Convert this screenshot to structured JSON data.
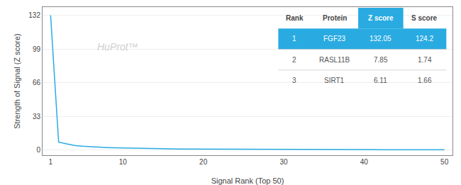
{
  "chart_data": {
    "type": "line",
    "xlabel": "Signal Rank (Top 50)",
    "ylabel": "Strength of Signal (Z score)",
    "x": [
      1,
      2,
      3,
      4,
      5,
      6,
      7,
      8,
      9,
      10,
      11,
      12,
      13,
      14,
      15,
      16,
      17,
      18,
      19,
      20,
      21,
      22,
      23,
      24,
      25,
      26,
      27,
      28,
      29,
      30,
      31,
      32,
      33,
      34,
      35,
      36,
      37,
      38,
      39,
      40,
      41,
      42,
      43,
      44,
      45,
      46,
      47,
      48,
      49,
      50
    ],
    "values": [
      132.05,
      7.85,
      6.11,
      4.5,
      3.8,
      3.2,
      2.8,
      2.5,
      2.2,
      2.0,
      1.8,
      1.6,
      1.5,
      1.4,
      1.3,
      1.2,
      1.15,
      1.1,
      1.05,
      1.0,
      0.95,
      0.9,
      0.87,
      0.84,
      0.81,
      0.78,
      0.76,
      0.74,
      0.72,
      0.7,
      0.68,
      0.66,
      0.64,
      0.62,
      0.6,
      0.58,
      0.56,
      0.54,
      0.52,
      0.5,
      0.48,
      0.46,
      0.44,
      0.42,
      0.4,
      0.38,
      0.36,
      0.34,
      0.32,
      0.3
    ],
    "color": "#29ABE2",
    "xlim": [
      0,
      51
    ],
    "xticks": [
      1,
      10,
      20,
      30,
      40,
      50
    ],
    "ylim": [
      -5,
      140
    ],
    "yticks": [
      0,
      33,
      66,
      99,
      132
    ],
    "grid": "y",
    "annotations": [
      "HuProt™"
    ],
    "table": {
      "headers": [
        "Rank",
        "Protein",
        "Z score",
        "S score"
      ],
      "rows": [
        [
          "1",
          "FGF23",
          "132.05",
          "124.2"
        ],
        [
          "2",
          "RASL11B",
          "7.85",
          "1.74"
        ],
        [
          "3",
          "SIRT1",
          "6.11",
          "1.66"
        ]
      ]
    }
  }
}
